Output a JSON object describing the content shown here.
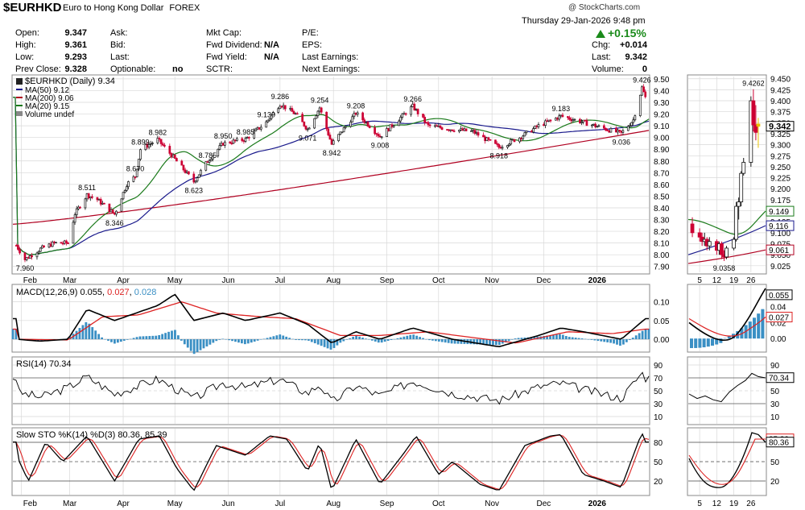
{
  "header": {
    "symbol": "$EURHKD",
    "description": "Euro to Hong Kong Dollar",
    "exchange": "FOREX",
    "copyright": "@ StockCharts.com",
    "datetime": "Thursday   29-Jan-2026   9:48 pm"
  },
  "quote": {
    "open_label": "Open:",
    "open": "9.347",
    "high_label": "High:",
    "high": "9.361",
    "low_label": "Low:",
    "low": "9.293",
    "prev_label": "Prev Close:",
    "prev": "9.328",
    "ask_label": "Ask:",
    "bid_label": "Bid:",
    "last_label2": "Last:",
    "optionable_label": "Optionable:",
    "optionable": "no",
    "mktcap_label": "Mkt Cap:",
    "fwd_div_label": "Fwd Dividend:",
    "fwd_div": "N/A",
    "fwd_yield_label": "Fwd Yield:",
    "fwd_yield": "N/A",
    "sctr_label": "SCTR:",
    "pe_label": "P/E:",
    "eps_label": "EPS:",
    "last_earn_label": "Last Earnings:",
    "next_earn_label": "Next Earnings:",
    "change_pct": "+0.15%",
    "chg_label": "Chg:",
    "chg": "+0.014",
    "last_label": "Last:",
    "last": "9.342",
    "volume_label": "Volume:",
    "volume": "0"
  },
  "legend": {
    "main": "$EURHKD (Daily) 9.34",
    "ma50": "MA(50) 9.12",
    "ma200": "MA(200) 9.06",
    "ma20": "MA(20) 9.15",
    "vol": "Volume undef"
  },
  "colors": {
    "up": "#111111",
    "down": "#cc0033",
    "ma50": "#1a1a8c",
    "ma200": "#b00020",
    "ma20": "#1a7a1a",
    "macd_hist": "#3a8fc4",
    "signal": "#dd2222",
    "grid": "#d8d8d8"
  },
  "indicators": {
    "macd_label": "MACD(12,26,9)",
    "macd_value": "0.055",
    "macd_signal": "0.027",
    "macd_hist": "0.028",
    "rsi_label": "RSI(14) 70.34",
    "sto_label": "Slow STO %K(14) %D(3) 80.36, 85.39"
  },
  "chart_data": [
    {
      "type": "candlestick",
      "title": "$EURHKD (Daily) 9.34",
      "x_ticks": [
        "Feb",
        "Mar",
        "Apr",
        "May",
        "Jun",
        "Jul",
        "Aug",
        "Sep",
        "Oct",
        "Nov",
        "Dec",
        "2026"
      ],
      "y_ticks": [
        "7.90",
        "8.00",
        "8.10",
        "8.20",
        "8.30",
        "8.40",
        "8.50",
        "8.60",
        "8.70",
        "8.80",
        "8.90",
        "9.00",
        "9.10",
        "9.20",
        "9.30",
        "9.40",
        "9.50"
      ],
      "ylim": [
        7.85,
        9.52
      ],
      "price_path": [
        [
          "2025-01-29",
          8.08
        ],
        [
          "2025-02-03",
          7.96
        ],
        [
          "2025-02-12",
          8.05
        ],
        [
          "2025-02-20",
          8.1
        ],
        [
          "2025-02-28",
          8.1
        ],
        [
          "2025-03-04",
          8.35
        ],
        [
          "2025-03-11",
          8.511
        ],
        [
          "2025-03-17",
          8.47
        ],
        [
          "2025-03-27",
          8.346
        ],
        [
          "2025-04-03",
          8.6
        ],
        [
          "2025-04-08",
          8.67
        ],
        [
          "2025-04-11",
          8.899
        ],
        [
          "2025-04-21",
          8.982
        ],
        [
          "2025-04-29",
          8.85
        ],
        [
          "2025-05-12",
          8.623
        ],
        [
          "2025-05-20",
          8.8
        ],
        [
          "2025-05-29",
          8.95
        ],
        [
          "2025-06-05",
          8.97
        ],
        [
          "2025-06-11",
          8.985
        ],
        [
          "2025-06-23",
          9.13
        ],
        [
          "2025-07-01",
          9.286
        ],
        [
          "2025-07-10",
          9.2
        ],
        [
          "2025-07-17",
          9.071
        ],
        [
          "2025-07-24",
          9.254
        ],
        [
          "2025-07-31",
          8.942
        ],
        [
          "2025-08-14",
          9.208
        ],
        [
          "2025-08-22",
          9.1
        ],
        [
          "2025-08-28",
          9.008
        ],
        [
          "2025-09-16",
          9.266
        ],
        [
          "2025-09-25",
          9.1
        ],
        [
          "2025-10-09",
          9.07
        ],
        [
          "2025-10-21",
          9.05
        ],
        [
          "2025-11-05",
          8.918
        ],
        [
          "2025-11-17",
          9.0
        ],
        [
          "2025-11-28",
          9.1
        ],
        [
          "2025-12-11",
          9.183
        ],
        [
          "2025-12-24",
          9.13
        ],
        [
          "2026-01-09",
          9.06
        ],
        [
          "2026-01-15",
          9.036
        ],
        [
          "2026-01-22",
          9.15
        ],
        [
          "2026-01-27",
          9.426
        ],
        [
          "2026-01-29",
          9.342
        ]
      ],
      "annotations": [
        [
          "2025-02-03",
          7.96,
          "7.960"
        ],
        [
          "2025-03-11",
          8.511,
          "8.511"
        ],
        [
          "2025-03-27",
          8.346,
          "8.346"
        ],
        [
          "2025-04-08",
          8.67,
          "8.670"
        ],
        [
          "2025-04-11",
          8.899,
          "8.899"
        ],
        [
          "2025-04-21",
          8.982,
          "8.982"
        ],
        [
          "2025-05-12",
          8.623,
          "8.623"
        ],
        [
          "2025-05-20",
          8.785,
          "8.785"
        ],
        [
          "2025-05-29",
          8.95,
          "8.950"
        ],
        [
          "2025-06-11",
          8.985,
          "8.985"
        ],
        [
          "2025-06-23",
          9.13,
          "9.130"
        ],
        [
          "2025-07-01",
          9.286,
          "9.286"
        ],
        [
          "2025-07-17",
          9.071,
          "9.071"
        ],
        [
          "2025-07-24",
          9.254,
          "9.254"
        ],
        [
          "2025-07-31",
          8.942,
          "8.942"
        ],
        [
          "2025-08-14",
          9.208,
          "9.208"
        ],
        [
          "2025-08-28",
          9.008,
          "9.008"
        ],
        [
          "2025-09-16",
          9.266,
          "9.266"
        ],
        [
          "2025-11-05",
          8.918,
          "8.918"
        ],
        [
          "2025-12-11",
          9.183,
          "9.183"
        ],
        [
          "2026-01-15",
          9.036,
          "9.036"
        ],
        [
          "2026-01-27",
          9.426,
          "9.426"
        ]
      ],
      "series_names": [
        "MA(50) 9.12",
        "MA(200) 9.06",
        "MA(20) 9.15"
      ]
    },
    {
      "type": "candlestick",
      "x_ticks": [
        "5",
        "12",
        "19",
        "26"
      ],
      "y_ticks": [
        "9.025",
        "9.050",
        "9.075",
        "9.100",
        "9.125",
        "9.150",
        "9.175",
        "9.200",
        "9.225",
        "9.250",
        "9.275",
        "9.300",
        "9.325",
        "9.350",
        "9.375",
        "9.400",
        "9.425",
        "9.450"
      ],
      "ylim": [
        9.01,
        9.455
      ],
      "annotations": [
        [
          "2026-01-27",
          9.4262,
          "9.4262"
        ],
        [
          "2026-01-15",
          9.0358,
          "9.0358"
        ]
      ],
      "value_tags": [
        "9.342",
        "9.149",
        "9.116",
        "9.061"
      ],
      "bars": [
        [
          "2026-01-02",
          9.12,
          9.135,
          9.09,
          9.1
        ],
        [
          "2026-01-05",
          9.1,
          9.11,
          9.08,
          9.09
        ],
        [
          "2026-01-06",
          9.09,
          9.1,
          9.07,
          9.08
        ],
        [
          "2026-01-07",
          9.08,
          9.1,
          9.07,
          9.085
        ],
        [
          "2026-01-08",
          9.085,
          9.09,
          9.06,
          9.07
        ],
        [
          "2026-01-09",
          9.07,
          9.09,
          9.06,
          9.08
        ],
        [
          "2026-01-12",
          9.08,
          9.085,
          9.05,
          9.06
        ],
        [
          "2026-01-13",
          9.06,
          9.08,
          9.05,
          9.075
        ],
        [
          "2026-01-14",
          9.075,
          9.08,
          9.04,
          9.05
        ],
        [
          "2026-01-15",
          9.05,
          9.06,
          9.0358,
          9.045
        ],
        [
          "2026-01-16",
          9.045,
          9.07,
          9.04,
          9.065
        ],
        [
          "2026-01-19",
          9.065,
          9.09,
          9.06,
          9.085
        ],
        [
          "2026-01-20",
          9.085,
          9.17,
          9.08,
          9.16
        ],
        [
          "2026-01-21",
          9.16,
          9.18,
          9.13,
          9.17
        ],
        [
          "2026-01-22",
          9.17,
          9.24,
          9.16,
          9.235
        ],
        [
          "2026-01-23",
          9.235,
          9.27,
          9.23,
          9.26
        ],
        [
          "2026-01-26",
          9.26,
          9.41,
          9.25,
          9.4
        ],
        [
          "2026-01-27",
          9.4,
          9.4262,
          9.33,
          9.345
        ],
        [
          "2026-01-28",
          9.345,
          9.39,
          9.31,
          9.328
        ],
        [
          "2026-01-29",
          9.347,
          9.361,
          9.293,
          9.342
        ]
      ]
    },
    {
      "type": "line",
      "title": "MACD(12,26,9) 0.055, 0.027, 0.028",
      "y_ticks": [
        "0.00",
        "0.05",
        "0.10"
      ],
      "ylim": [
        -0.03,
        0.14
      ],
      "macd_path": [
        [
          "2025-01-29",
          0.0
        ],
        [
          "2025-02-12",
          -0.005
        ],
        [
          "2025-02-28",
          0.0
        ],
        [
          "2025-03-11",
          0.08
        ],
        [
          "2025-03-27",
          0.05
        ],
        [
          "2025-04-21",
          0.09
        ],
        [
          "2025-05-01",
          0.12
        ],
        [
          "2025-05-12",
          0.05
        ],
        [
          "2025-05-29",
          0.07
        ],
        [
          "2025-06-11",
          0.05
        ],
        [
          "2025-07-01",
          0.07
        ],
        [
          "2025-07-17",
          0.04
        ],
        [
          "2025-07-31",
          -0.01
        ],
        [
          "2025-08-14",
          0.02
        ],
        [
          "2025-08-28",
          0.0
        ],
        [
          "2025-09-16",
          0.03
        ],
        [
          "2025-10-09",
          0.0
        ],
        [
          "2025-11-05",
          -0.02
        ],
        [
          "2025-11-28",
          0.01
        ],
        [
          "2025-12-11",
          0.03
        ],
        [
          "2025-12-24",
          0.02
        ],
        [
          "2026-01-15",
          0.0
        ],
        [
          "2026-01-29",
          0.055
        ]
      ],
      "signal_path": [
        [
          "2025-01-29",
          0.0
        ],
        [
          "2025-02-28",
          -0.002
        ],
        [
          "2025-03-20",
          0.06
        ],
        [
          "2025-04-10",
          0.065
        ],
        [
          "2025-05-05",
          0.1
        ],
        [
          "2025-05-25",
          0.07
        ],
        [
          "2025-06-20",
          0.06
        ],
        [
          "2025-07-10",
          0.055
        ],
        [
          "2025-08-05",
          0.01
        ],
        [
          "2025-08-28",
          0.01
        ],
        [
          "2025-09-25",
          0.02
        ],
        [
          "2025-10-20",
          0.005
        ],
        [
          "2025-11-15",
          -0.01
        ],
        [
          "2025-12-15",
          0.02
        ],
        [
          "2026-01-10",
          0.015
        ],
        [
          "2026-01-29",
          0.027
        ]
      ]
    },
    {
      "type": "line",
      "title": "RSI(14) 70.34",
      "y_ticks": [
        "10",
        "30",
        "50",
        "70",
        "90"
      ],
      "ylim": [
        0,
        100
      ],
      "rsi_path": [
        [
          "2025-01-29",
          48
        ],
        [
          "2025-02-12",
          40
        ],
        [
          "2025-02-28",
          55
        ],
        [
          "2025-03-11",
          72
        ],
        [
          "2025-03-27",
          45
        ],
        [
          "2025-04-21",
          68
        ],
        [
          "2025-05-12",
          38
        ],
        [
          "2025-05-29",
          62
        ],
        [
          "2025-06-11",
          55
        ],
        [
          "2025-07-01",
          68
        ],
        [
          "2025-07-17",
          46
        ],
        [
          "2025-07-24",
          60
        ],
        [
          "2025-07-31",
          32
        ],
        [
          "2025-08-14",
          58
        ],
        [
          "2025-08-28",
          42
        ],
        [
          "2025-09-16",
          65
        ],
        [
          "2025-10-09",
          46
        ],
        [
          "2025-11-05",
          35
        ],
        [
          "2025-11-28",
          56
        ],
        [
          "2025-12-11",
          62
        ],
        [
          "2025-12-24",
          52
        ],
        [
          "2026-01-15",
          38
        ],
        [
          "2026-01-27",
          78
        ],
        [
          "2026-01-29",
          70.34
        ]
      ]
    },
    {
      "type": "line",
      "title": "Slow STO %K(14) %D(3) 80.36, 85.39",
      "y_ticks": [
        "20",
        "50",
        "80"
      ],
      "ylim": [
        0,
        100
      ],
      "k_path": [
        [
          "2025-01-29",
          60
        ],
        [
          "2025-02-05",
          20
        ],
        [
          "2025-02-15",
          80
        ],
        [
          "2025-02-25",
          50
        ],
        [
          "2025-03-11",
          90
        ],
        [
          "2025-03-27",
          20
        ],
        [
          "2025-04-10",
          85
        ],
        [
          "2025-04-22",
          90
        ],
        [
          "2025-05-02",
          40
        ],
        [
          "2025-05-12",
          5
        ],
        [
          "2025-05-25",
          75
        ],
        [
          "2025-06-11",
          60
        ],
        [
          "2025-06-25",
          90
        ],
        [
          "2025-07-05",
          85
        ],
        [
          "2025-07-17",
          35
        ],
        [
          "2025-07-24",
          80
        ],
        [
          "2025-07-31",
          5
        ],
        [
          "2025-08-14",
          85
        ],
        [
          "2025-08-28",
          15
        ],
        [
          "2025-09-10",
          60
        ],
        [
          "2025-09-18",
          90
        ],
        [
          "2025-10-01",
          30
        ],
        [
          "2025-10-09",
          50
        ],
        [
          "2025-10-25",
          15
        ],
        [
          "2025-11-05",
          5
        ],
        [
          "2025-11-20",
          75
        ],
        [
          "2025-12-05",
          90
        ],
        [
          "2025-12-11",
          92
        ],
        [
          "2025-12-24",
          30
        ],
        [
          "2026-01-05",
          20
        ],
        [
          "2026-01-15",
          10
        ],
        [
          "2026-01-22",
          60
        ],
        [
          "2026-01-27",
          95
        ],
        [
          "2026-01-29",
          80.36
        ]
      ]
    }
  ]
}
